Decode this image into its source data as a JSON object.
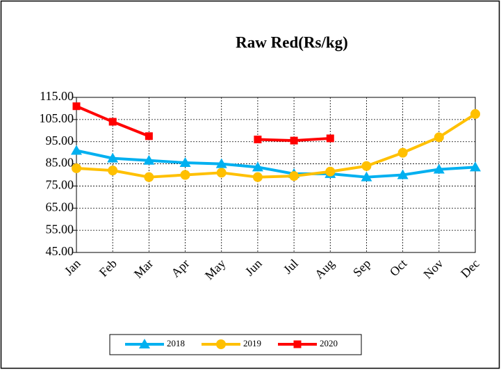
{
  "chart_data": {
    "type": "line",
    "title": "Raw Red(Rs/kg)",
    "categories": [
      "Jan",
      "Feb",
      "Mar",
      "Apr",
      "May",
      "Jun",
      "Jul",
      "Aug",
      "Sep",
      "Oct",
      "Nov",
      "Dec"
    ],
    "series": [
      {
        "name": "2018",
        "color": "#00b0f0",
        "marker": "triangle",
        "values": [
          91,
          87.5,
          86.5,
          85.5,
          85,
          83.5,
          80.5,
          80.5,
          79,
          80,
          82.5,
          83.5
        ]
      },
      {
        "name": "2019",
        "color": "#ffc000",
        "marker": "circle",
        "values": [
          83,
          82,
          79,
          80,
          81,
          79,
          79.5,
          81.5,
          84,
          90,
          97,
          107.5
        ]
      },
      {
        "name": "2020",
        "color": "#ff0000",
        "marker": "square",
        "values": [
          111,
          104,
          97.5,
          null,
          null,
          96,
          95.5,
          96.5,
          null,
          null,
          null,
          null
        ]
      }
    ],
    "ylim": [
      45,
      115
    ],
    "yticks": [
      {
        "value": 45,
        "label": "45.00"
      },
      {
        "value": 55,
        "label": "55.00"
      },
      {
        "value": 65,
        "label": "65.00"
      },
      {
        "value": 75,
        "label": "75.00"
      },
      {
        "value": 85,
        "label": "85.00"
      },
      {
        "value": 95,
        "label": "95.00"
      },
      {
        "value": 105,
        "label": "105.00"
      },
      {
        "value": 115,
        "label": "115.00"
      }
    ],
    "grid": true,
    "legend": "bottom"
  }
}
